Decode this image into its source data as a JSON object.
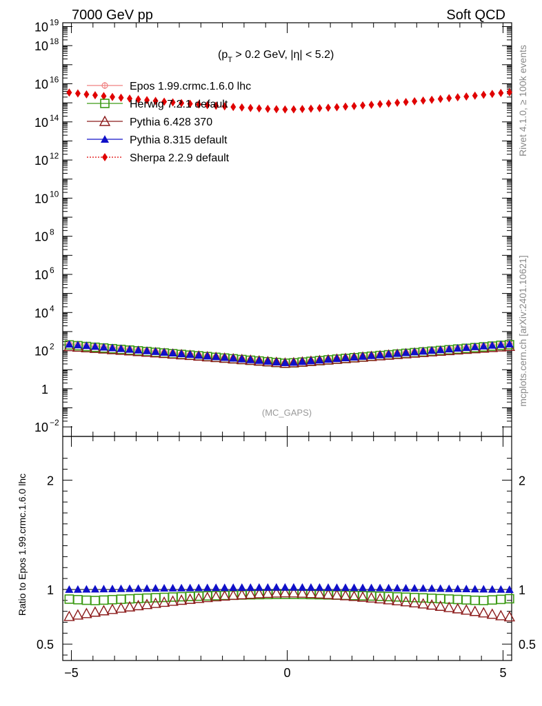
{
  "header": {
    "left": "7000 GeV pp",
    "right": "Soft QCD",
    "cut_open": "(p",
    "cut_sub": "T",
    "cut_rest": " > 0.2 GeV, |η| < 5.2)",
    "watermark": "(MC_GAPS)",
    "side_rivet": "Rivet 4.1.0, ≥ 100k events",
    "side_mcplots": "mcplots.cern.ch [arXiv:2401.10621]"
  },
  "chart_data": [
    {
      "type": "scatter",
      "panel": "main",
      "yscale": "log",
      "xlim": [
        -5.2,
        5.2
      ],
      "ylim_exp": [
        -2.5,
        19.2
      ],
      "x": [
        -5.05,
        -4.85,
        -4.65,
        -4.45,
        -4.25,
        -4.05,
        -3.85,
        -3.65,
        -3.45,
        -3.25,
        -3.05,
        -2.85,
        -2.65,
        -2.45,
        -2.25,
        -2.05,
        -1.85,
        -1.65,
        -1.45,
        -1.25,
        -1.05,
        -0.85,
        -0.65,
        -0.45,
        -0.25,
        -0.05,
        0.15,
        0.35,
        0.55,
        0.75,
        0.95,
        1.15,
        1.35,
        1.55,
        1.75,
        1.95,
        2.15,
        2.35,
        2.55,
        2.75,
        2.95,
        3.15,
        3.35,
        3.55,
        3.75,
        3.95,
        4.15,
        4.35,
        4.55,
        4.75,
        4.95,
        5.15
      ],
      "y_major_ticks": [
        {
          "exp": -2,
          "label": "10",
          "sup": "−2"
        },
        {
          "exp": 0,
          "label": "1",
          "sup": ""
        },
        {
          "exp": 2,
          "label": "10",
          "sup": "2"
        },
        {
          "exp": 4,
          "label": "10",
          "sup": "4"
        },
        {
          "exp": 6,
          "label": "10",
          "sup": "6"
        },
        {
          "exp": 8,
          "label": "10",
          "sup": "8"
        },
        {
          "exp": 10,
          "label": "10",
          "sup": "10"
        },
        {
          "exp": 12,
          "label": "10",
          "sup": "12"
        },
        {
          "exp": 14,
          "label": "10",
          "sup": "14"
        },
        {
          "exp": 16,
          "label": "10",
          "sup": "16"
        },
        {
          "exp": 18,
          "label": "10",
          "sup": "18"
        },
        {
          "exp": 19,
          "label": "10",
          "sup": "19"
        }
      ],
      "epos_log10": {
        "center": 1.35,
        "edge": 2.35
      },
      "sherpa_log10": {
        "center": 14.65,
        "edge": 15.55
      },
      "series": [
        {
          "name": "Epos 1.99.crmc.1.6.0 lhc",
          "color": "#f08080",
          "marker": "open-cross",
          "ratio_ref": true
        },
        {
          "name": "Herwig 7.2.1 default",
          "color": "#3c9a14",
          "marker": "open-square"
        },
        {
          "name": "Pythia 6.428 370",
          "color": "#8b1a1a",
          "marker": "open-triangle"
        },
        {
          "name": "Pythia 8.315 default",
          "color": "#1010c8",
          "marker": "filled-triangle"
        },
        {
          "name": "Sherpa 2.2.9 default",
          "color": "#e00000",
          "marker": "filled-diamond",
          "dotted": true
        }
      ]
    },
    {
      "type": "scatter",
      "panel": "ratio",
      "ylabel": "Ratio to Epos 1.99.crmc.1.6.0 lhc",
      "xlim": [
        -5.2,
        5.2
      ],
      "ylim": [
        0.35,
        2.4
      ],
      "y_ticks": [
        0.5,
        1,
        2
      ],
      "y_tick_labels": [
        "0.5",
        "1",
        "2"
      ],
      "x_ticks": [
        -5,
        0,
        5
      ],
      "x_tick_labels": [
        "−5",
        "0",
        "5"
      ],
      "ratios": {
        "Herwig 7.2.1 default": {
          "center": 0.955,
          "edge": 0.885,
          "end_rise": 0.915
        },
        "Pythia 6.428 370": {
          "center": 0.97,
          "edge": 0.75
        },
        "Pythia 8.315 default": {
          "center": 1.02,
          "edge": 1.0
        }
      }
    }
  ]
}
